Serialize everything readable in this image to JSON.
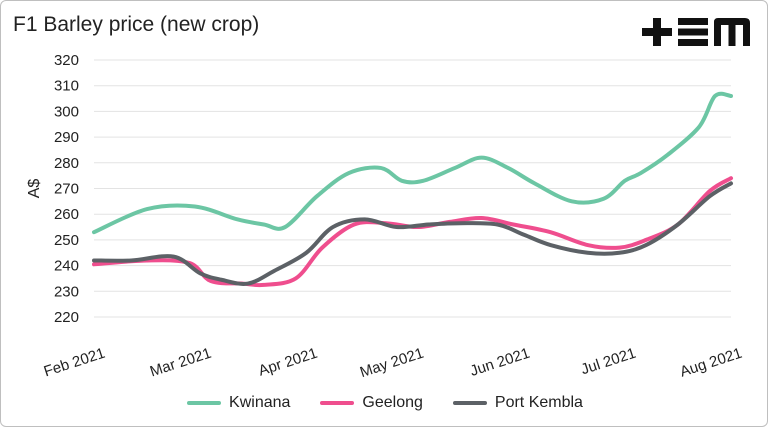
{
  "title": "F1 Barley price (new crop)",
  "logo": {
    "text": "+EM",
    "color": "#111111"
  },
  "chart_data": {
    "type": "line",
    "title": "F1 Barley price (new crop)",
    "ylabel": "A$",
    "xlabel": "",
    "ylim": [
      220,
      320
    ],
    "yticks": [
      220,
      230,
      240,
      250,
      260,
      270,
      280,
      290,
      300,
      310,
      320
    ],
    "xlim": [
      0,
      6
    ],
    "xticks": [
      {
        "label": "Feb 2021",
        "x": 0
      },
      {
        "label": "Mar 2021",
        "x": 1
      },
      {
        "label": "Apr 2021",
        "x": 2
      },
      {
        "label": "May 2021",
        "x": 3
      },
      {
        "label": "Jun 2021",
        "x": 4
      },
      {
        "label": "Jul 2021",
        "x": 5
      },
      {
        "label": "Aug 2021",
        "x": 6
      }
    ],
    "grid": "horizontal",
    "legend": "bottom",
    "series": [
      {
        "name": "Kwinana",
        "color": "#6cc6a4",
        "x": [
          0,
          0.5,
          0.95,
          1.35,
          1.6,
          1.8,
          2.1,
          2.4,
          2.7,
          2.9,
          3.1,
          3.4,
          3.65,
          3.9,
          4.15,
          4.5,
          4.8,
          5.0,
          5.15,
          5.4,
          5.7,
          5.85,
          6.0
        ],
        "y": [
          253,
          262,
          263,
          258,
          256,
          255,
          267,
          276,
          278,
          273,
          273,
          278,
          282,
          278,
          272,
          265,
          266,
          273,
          276,
          283,
          294,
          306,
          306
        ]
      },
      {
        "name": "Geelong",
        "color": "#ef4e8e",
        "x": [
          0,
          0.5,
          0.9,
          1.1,
          1.4,
          1.6,
          1.9,
          2.15,
          2.45,
          2.75,
          3.05,
          3.35,
          3.65,
          3.95,
          4.3,
          4.65,
          4.95,
          5.2,
          5.5,
          5.8,
          6.0
        ],
        "y": [
          240.5,
          242,
          241,
          234,
          233,
          232.5,
          235,
          247,
          256,
          256.5,
          255,
          257,
          258.5,
          256,
          253,
          248,
          247,
          250,
          256,
          269,
          274
        ]
      },
      {
        "name": "Port Kembla",
        "color": "#5c6166",
        "x": [
          0,
          0.35,
          0.75,
          1.0,
          1.2,
          1.45,
          1.7,
          2.0,
          2.25,
          2.55,
          2.85,
          3.15,
          3.45,
          3.8,
          4.05,
          4.3,
          4.65,
          4.95,
          5.2,
          5.5,
          5.8,
          6.0
        ],
        "y": [
          242,
          242,
          243.5,
          237,
          234.5,
          233,
          238,
          245,
          255,
          258,
          255,
          256,
          256.5,
          256,
          252,
          248,
          245,
          245,
          248,
          256,
          267,
          272
        ]
      }
    ]
  }
}
